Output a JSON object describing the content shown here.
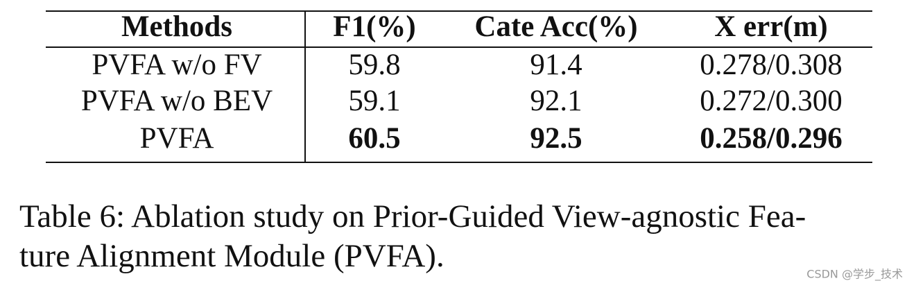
{
  "table": {
    "header": [
      "Methods",
      "F1(%)",
      "Cate Acc(%)",
      "X err(m)"
    ],
    "rows": [
      [
        "PVFA w/o FV",
        "59.8",
        "91.4",
        "0.278/0.308"
      ],
      [
        "PVFA w/o BEV",
        "59.1",
        "92.1",
        "0.272/0.300"
      ],
      [
        "PVFA",
        "60.5",
        "92.5",
        "0.258/0.296"
      ]
    ]
  },
  "caption": {
    "lines": [
      "Table 6: Ablation study on Prior-Guided View-agnostic Fea-",
      "ture Alignment Module (PVFA)."
    ]
  },
  "watermark": "CSDN @学步_技术"
}
